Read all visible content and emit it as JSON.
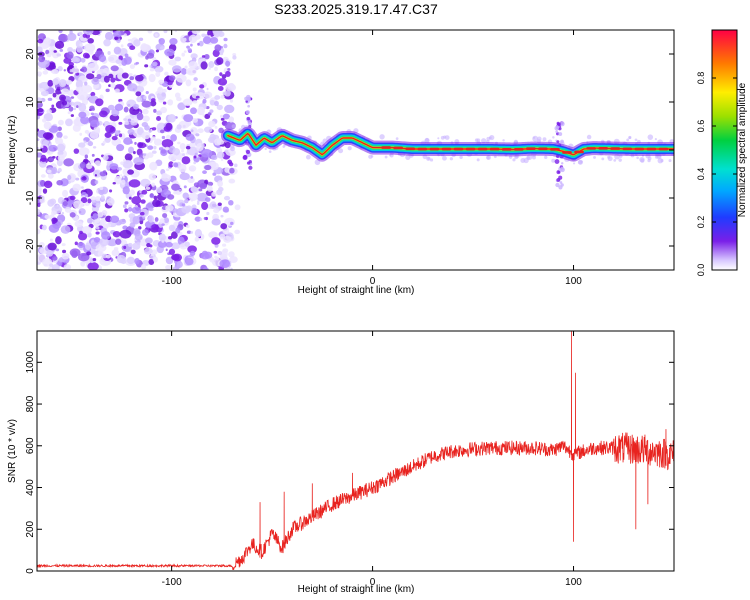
{
  "title": "S233.2025.319.17.47.C37",
  "colors": {
    "axis": "#000000",
    "snr_line": "#e8231f",
    "ridge_core": "#e8231f",
    "ridge_halo": "#22e07a",
    "speckle": "#7a1fe8"
  },
  "chart_data": [
    {
      "type": "heatmap",
      "name": "spectrogram",
      "xlabel": "Height of straight line (km)",
      "ylabel": "Frequency (Hz)",
      "xlim": [
        -167,
        150
      ],
      "ylim": [
        -25,
        25
      ],
      "xticks": [
        -100,
        0,
        100
      ],
      "xtick_labels": [
        "-100",
        "0",
        "100"
      ],
      "yticks": [
        -20,
        -10,
        0,
        10,
        20
      ],
      "ytick_labels": [
        "-20",
        "-10",
        "0",
        "10",
        "20"
      ],
      "noise_region_x": [
        -167,
        -70
      ],
      "ridge": {
        "x": [
          -72,
          -66,
          -62,
          -58,
          -54,
          -50,
          -45,
          -40,
          -35,
          -30,
          -25,
          -20,
          -15,
          -10,
          -5,
          0,
          10,
          20,
          30,
          40,
          50,
          60,
          70,
          80,
          90,
          95,
          100,
          105,
          110,
          120,
          130,
          140,
          150
        ],
        "y": [
          3,
          2,
          3.5,
          1,
          2.5,
          1.5,
          3,
          2,
          1.5,
          0.5,
          -1,
          1,
          2.5,
          2.5,
          1.5,
          0.5,
          0.5,
          0.2,
          0.2,
          0.2,
          0.2,
          0.2,
          0.1,
          0.3,
          0.2,
          -0.3,
          -1,
          0.2,
          0.4,
          0.3,
          0.2,
          0.2,
          0.2
        ]
      },
      "colorbar": {
        "label": "Normalized spectral amplitude",
        "range": [
          0,
          1
        ],
        "ticks": [
          0.0,
          0.2,
          0.4,
          0.6,
          0.8
        ],
        "tick_labels": [
          "0.0",
          "0.2",
          "0.4",
          "0.6",
          "0.8"
        ]
      }
    },
    {
      "type": "line",
      "name": "snr",
      "xlabel": "Height of straight line (km)",
      "ylabel": "SNR (10 * v/v)",
      "xlim": [
        -167,
        150
      ],
      "ylim": [
        0,
        1150
      ],
      "xticks": [
        -100,
        0,
        100
      ],
      "xtick_labels": [
        "-100",
        "0",
        "100"
      ],
      "yticks": [
        0,
        200,
        400,
        600,
        800,
        1000
      ],
      "ytick_labels": [
        "0",
        "200",
        "400",
        "600",
        "800",
        "1000"
      ],
      "trend": {
        "x": [
          -167,
          -70,
          -65,
          -60,
          -55,
          -50,
          -45,
          -40,
          -30,
          -20,
          -10,
          0,
          10,
          20,
          30,
          40,
          50,
          60,
          70,
          80,
          90,
          95,
          100,
          110,
          120,
          130,
          140,
          150
        ],
        "y": [
          25,
          25,
          60,
          130,
          90,
          180,
          110,
          200,
          260,
          320,
          360,
          400,
          450,
          500,
          550,
          575,
          585,
          590,
          590,
          590,
          580,
          600,
          560,
          590,
          590,
          585,
          575,
          555
        ]
      },
      "spikes": [
        {
          "x": -56,
          "y": 330
        },
        {
          "x": -44,
          "y": 380
        },
        {
          "x": -30,
          "y": 420
        },
        {
          "x": -10,
          "y": 470
        },
        {
          "x": 99,
          "y": 1150
        },
        {
          "x": 101,
          "y": 950
        },
        {
          "x": 100,
          "y": 140
        },
        {
          "x": 131,
          "y": 200
        },
        {
          "x": 137,
          "y": 320
        },
        {
          "x": 146,
          "y": 680
        }
      ],
      "noise_amplitude": 35
    }
  ]
}
